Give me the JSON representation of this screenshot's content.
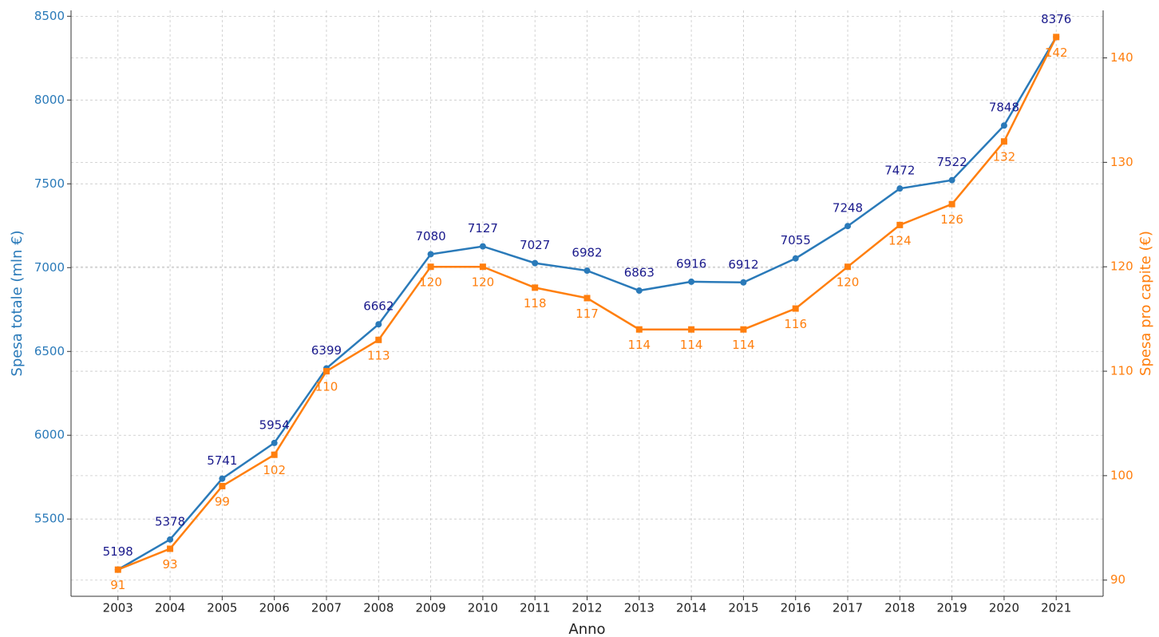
{
  "chart_data": {
    "type": "line",
    "xlabel": "Anno",
    "ylabel": "Spesa totale (mln €)",
    "y2label": "Spesa pro capite (€)",
    "x": [
      2003,
      2004,
      2005,
      2006,
      2007,
      2008,
      2009,
      2010,
      2011,
      2012,
      2013,
      2014,
      2015,
      2016,
      2017,
      2018,
      2019,
      2020,
      2021
    ],
    "xlim": [
      2002.1,
      2021.9
    ],
    "xticks": [
      2003,
      2004,
      2005,
      2006,
      2007,
      2008,
      2009,
      2010,
      2011,
      2012,
      2013,
      2014,
      2015,
      2016,
      2017,
      2018,
      2019,
      2020,
      2021
    ],
    "ylim": [
      5039,
      8535
    ],
    "yticks": [
      5500,
      6000,
      6500,
      7000,
      7500,
      8000,
      8500
    ],
    "y2lim": [
      88.45,
      144.55
    ],
    "y2ticks": [
      90,
      100,
      110,
      120,
      130,
      140
    ],
    "grid": true,
    "series": [
      {
        "name": "Spesa totale (mln €)",
        "color": "#2a7ab9",
        "label_color": "#1a1a8c",
        "marker": "circle",
        "axis": "y",
        "values": [
          5198,
          5378,
          5741,
          5954,
          6399,
          6662,
          7080,
          7127,
          7027,
          6982,
          6863,
          6916,
          6912,
          7055,
          7248,
          7472,
          7522,
          7848,
          8376
        ]
      },
      {
        "name": "Spesa pro capite (€)",
        "color": "#ff7f0e",
        "label_color": "#ff7f0e",
        "marker": "square",
        "axis": "y2",
        "values": [
          91,
          93,
          99,
          102,
          110,
          113,
          120,
          120,
          118,
          117,
          114,
          114,
          114,
          116,
          120,
          124,
          126,
          132,
          142
        ]
      }
    ]
  }
}
